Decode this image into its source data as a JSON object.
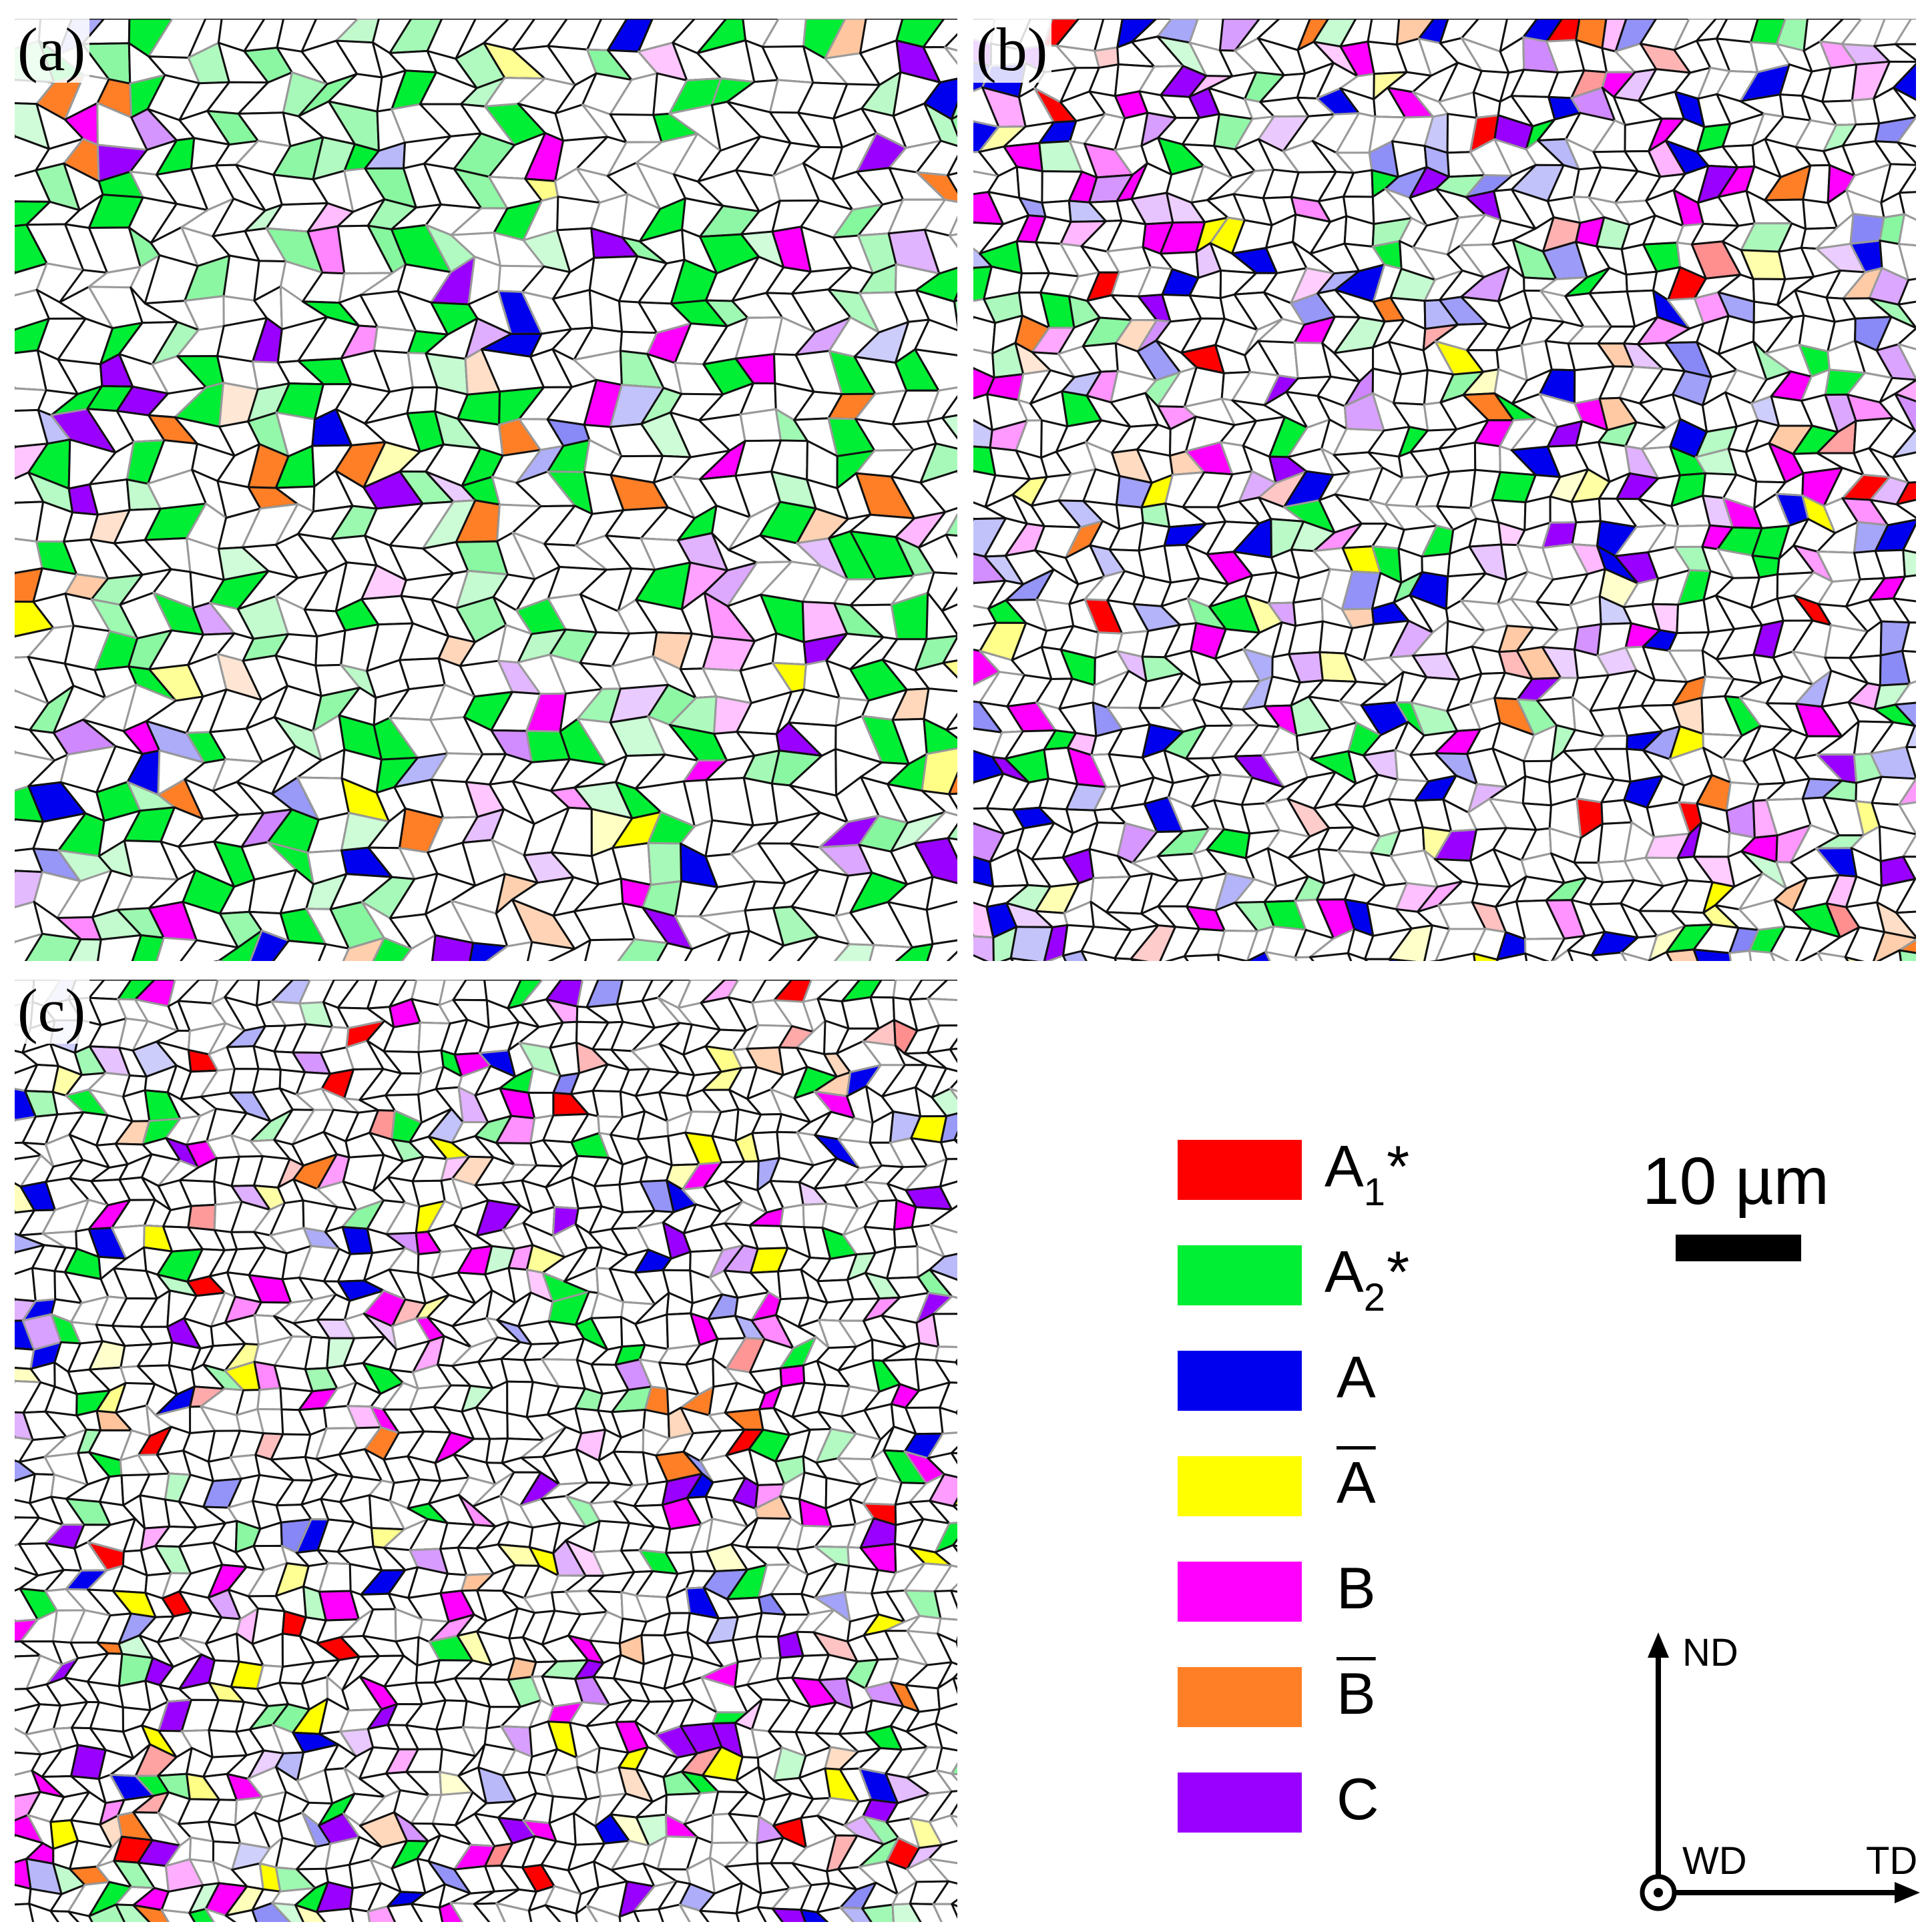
{
  "panels": [
    {
      "label": "(a)"
    },
    {
      "label": "(b)"
    },
    {
      "label": "(c)"
    }
  ],
  "legend": [
    {
      "base": "A",
      "sub": "1",
      "suffix": "*",
      "overline": false,
      "color": "#ff0000"
    },
    {
      "base": "A",
      "sub": "2",
      "suffix": "*",
      "overline": false,
      "color": "#00ee33"
    },
    {
      "base": "A",
      "sub": "",
      "suffix": "",
      "overline": false,
      "color": "#0000ee"
    },
    {
      "base": "A",
      "sub": "",
      "suffix": "",
      "overline": true,
      "color": "#ffff00"
    },
    {
      "base": "B",
      "sub": "",
      "suffix": "",
      "overline": false,
      "color": "#ff00ff"
    },
    {
      "base": "B",
      "sub": "",
      "suffix": "",
      "overline": true,
      "color": "#ff7f27"
    },
    {
      "base": "C",
      "sub": "",
      "suffix": "",
      "overline": false,
      "color": "#9900ff"
    }
  ],
  "scale": {
    "text": "10 µm"
  },
  "axes": {
    "nd": "ND",
    "wd": "WD",
    "td": "TD"
  }
}
